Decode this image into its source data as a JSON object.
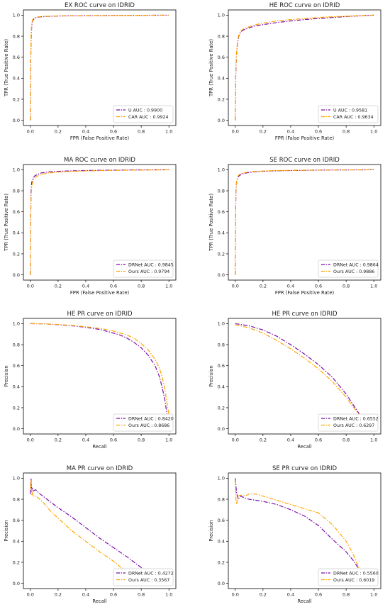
{
  "colors": {
    "u": "#7a0da6",
    "car": "#ffa500"
  },
  "chart_data": [
    {
      "type": "line",
      "title": "EX ROC curve on IDRID",
      "xlabel": "FPR (False Positive Rate)",
      "ylabel": "TPR (True Positive Rate)",
      "xlim": [
        -0.05,
        1.05
      ],
      "ylim": [
        -0.05,
        1.05
      ],
      "xticks": [
        "0.0",
        "0.2",
        "0.4",
        "0.6",
        "0.8",
        "1.0"
      ],
      "yticks": [
        "0.0",
        "0.2",
        "0.4",
        "0.6",
        "0.8",
        "1.0"
      ],
      "legend": "lower-right",
      "series": [
        {
          "name": "U AUC : 0.9900",
          "color": "#7a0da6",
          "x": [
            0,
            0.002,
            0.005,
            0.01,
            0.015,
            0.02,
            0.03,
            0.05,
            0.08,
            0.12,
            0.2,
            0.3,
            0.5,
            0.7,
            1.0
          ],
          "y": [
            0,
            0.45,
            0.75,
            0.9,
            0.94,
            0.955,
            0.97,
            0.98,
            0.985,
            0.988,
            0.992,
            0.994,
            0.996,
            0.998,
            1.0
          ]
        },
        {
          "name": "CAR AUC : 0.9924",
          "color": "#ffa500",
          "x": [
            0,
            0.002,
            0.005,
            0.01,
            0.015,
            0.02,
            0.03,
            0.05,
            0.08,
            0.12,
            0.2,
            0.3,
            0.5,
            0.7,
            1.0
          ],
          "y": [
            0,
            0.5,
            0.8,
            0.92,
            0.95,
            0.965,
            0.975,
            0.983,
            0.988,
            0.99,
            0.993,
            0.995,
            0.997,
            0.998,
            1.0
          ]
        }
      ]
    },
    {
      "type": "line",
      "title": "HE ROC curve on IDRID",
      "xlabel": "FPR (False Positive Rate)",
      "ylabel": "TPR (True Positive Rate)",
      "xlim": [
        -0.05,
        1.05
      ],
      "ylim": [
        -0.05,
        1.05
      ],
      "xticks": [
        "0.0",
        "0.2",
        "0.4",
        "0.6",
        "0.8",
        "1.0"
      ],
      "yticks": [
        "0.0",
        "0.2",
        "0.4",
        "0.6",
        "0.8",
        "1.0"
      ],
      "legend": "lower-right",
      "series": [
        {
          "name": "U AUC : 0.9581",
          "color": "#7a0da6",
          "x": [
            0,
            0.003,
            0.008,
            0.015,
            0.025,
            0.04,
            0.06,
            0.1,
            0.15,
            0.2,
            0.3,
            0.4,
            0.5,
            0.6,
            0.7,
            0.8,
            0.9,
            1.0
          ],
          "y": [
            0,
            0.4,
            0.6,
            0.72,
            0.8,
            0.84,
            0.86,
            0.88,
            0.9,
            0.91,
            0.93,
            0.945,
            0.958,
            0.968,
            0.978,
            0.987,
            0.994,
            1.0
          ]
        },
        {
          "name": "CAR AUC : 0.9634",
          "color": "#ffa500",
          "x": [
            0,
            0.003,
            0.008,
            0.015,
            0.025,
            0.04,
            0.06,
            0.1,
            0.15,
            0.2,
            0.3,
            0.4,
            0.5,
            0.6,
            0.7,
            0.8,
            0.9,
            1.0
          ],
          "y": [
            0,
            0.42,
            0.62,
            0.74,
            0.81,
            0.85,
            0.87,
            0.89,
            0.91,
            0.925,
            0.945,
            0.958,
            0.968,
            0.978,
            0.985,
            0.99,
            0.995,
            1.0
          ]
        }
      ]
    },
    {
      "type": "line",
      "title": "MA ROC curve on IDRID",
      "xlabel": "FPR (False Positive Rate)",
      "ylabel": "TPR (True Positive Rate)",
      "xlim": [
        -0.05,
        1.05
      ],
      "ylim": [
        -0.05,
        1.05
      ],
      "xticks": [
        "0.0",
        "0.2",
        "0.4",
        "0.6",
        "0.8",
        "1.0"
      ],
      "yticks": [
        "0.0",
        "0.2",
        "0.4",
        "0.6",
        "0.8",
        "1.0"
      ],
      "legend": "lower-right",
      "series": [
        {
          "name": "DRNet AUC : 0.9845",
          "color": "#7a0da6",
          "x": [
            0,
            0.002,
            0.005,
            0.01,
            0.02,
            0.03,
            0.05,
            0.08,
            0.12,
            0.2,
            0.3,
            0.5,
            0.7,
            1.0
          ],
          "y": [
            0,
            0.5,
            0.78,
            0.88,
            0.92,
            0.94,
            0.955,
            0.97,
            0.978,
            0.985,
            0.99,
            0.995,
            0.998,
            1.0
          ]
        },
        {
          "name": "Ours AUC : 0.9794",
          "color": "#ffa500",
          "x": [
            0,
            0.002,
            0.005,
            0.01,
            0.02,
            0.03,
            0.05,
            0.08,
            0.12,
            0.2,
            0.3,
            0.5,
            0.7,
            1.0
          ],
          "y": [
            0,
            0.45,
            0.72,
            0.84,
            0.9,
            0.92,
            0.94,
            0.955,
            0.968,
            0.978,
            0.985,
            0.992,
            0.996,
            1.0
          ]
        }
      ]
    },
    {
      "type": "line",
      "title": "SE ROC curve on IDRID",
      "xlabel": "FPR (False Positive Rate)",
      "ylabel": "TPR (True Positive Rate)",
      "xlim": [
        -0.05,
        1.05
      ],
      "ylim": [
        -0.05,
        1.05
      ],
      "xticks": [
        "0.0",
        "0.2",
        "0.4",
        "0.6",
        "0.8",
        "1.0"
      ],
      "yticks": [
        "0.0",
        "0.2",
        "0.4",
        "0.6",
        "0.8",
        "1.0"
      ],
      "legend": "lower-right",
      "series": [
        {
          "name": "DRNet AUC : 0.9864",
          "color": "#7a0da6",
          "x": [
            0,
            0.002,
            0.005,
            0.01,
            0.02,
            0.03,
            0.05,
            0.08,
            0.12,
            0.2,
            0.3,
            0.5,
            0.7,
            1.0
          ],
          "y": [
            0,
            0.55,
            0.8,
            0.89,
            0.93,
            0.945,
            0.96,
            0.97,
            0.978,
            0.986,
            0.99,
            0.995,
            0.998,
            1.0
          ]
        },
        {
          "name": "Ours AUC : 0.9886",
          "color": "#ffa500",
          "x": [
            0,
            0.002,
            0.005,
            0.01,
            0.02,
            0.03,
            0.05,
            0.08,
            0.12,
            0.2,
            0.3,
            0.5,
            0.7,
            1.0
          ],
          "y": [
            0,
            0.6,
            0.82,
            0.9,
            0.94,
            0.955,
            0.968,
            0.976,
            0.982,
            0.988,
            0.992,
            0.996,
            0.998,
            1.0
          ]
        }
      ]
    },
    {
      "type": "line",
      "title": "HE PR curve on IDRID",
      "xlabel": "Recall",
      "ylabel": "Precision",
      "xlim": [
        -0.05,
        1.05
      ],
      "ylim": [
        -0.05,
        1.05
      ],
      "xticks": [
        "0.0",
        "0.2",
        "0.4",
        "0.6",
        "0.8",
        "1.0"
      ],
      "yticks": [
        "0.0",
        "0.2",
        "0.4",
        "0.6",
        "0.8",
        "1.0"
      ],
      "legend": "lower-right",
      "series": [
        {
          "name": "DRNet AUC : 0.8420",
          "color": "#7a0da6",
          "x": [
            0,
            0.1,
            0.2,
            0.3,
            0.4,
            0.5,
            0.6,
            0.65,
            0.7,
            0.75,
            0.8,
            0.85,
            0.9,
            0.93,
            0.95,
            0.97,
            0.99
          ],
          "y": [
            1.0,
            0.998,
            0.99,
            0.98,
            0.965,
            0.945,
            0.91,
            0.89,
            0.86,
            0.82,
            0.77,
            0.7,
            0.6,
            0.5,
            0.4,
            0.28,
            0.1
          ]
        },
        {
          "name": "Ours AUC : 0.8686",
          "color": "#ffa500",
          "x": [
            0,
            0.1,
            0.2,
            0.3,
            0.4,
            0.5,
            0.6,
            0.65,
            0.7,
            0.75,
            0.8,
            0.85,
            0.9,
            0.93,
            0.95,
            0.97,
            1.0
          ],
          "y": [
            1.0,
            0.998,
            0.992,
            0.983,
            0.97,
            0.955,
            0.93,
            0.91,
            0.89,
            0.86,
            0.81,
            0.75,
            0.66,
            0.58,
            0.5,
            0.38,
            0.13
          ]
        }
      ]
    },
    {
      "type": "line",
      "title": "HE PR curve on IDRID",
      "xlabel": "Recall",
      "ylabel": "Precision",
      "xlim": [
        -0.05,
        1.05
      ],
      "ylim": [
        -0.05,
        1.05
      ],
      "xticks": [
        "0.0",
        "0.2",
        "0.4",
        "0.6",
        "0.8",
        "1.0"
      ],
      "yticks": [
        "0.0",
        "0.2",
        "0.4",
        "0.6",
        "0.8",
        "1.0"
      ],
      "legend": "lower-right",
      "series": [
        {
          "name": "DRNet AUC : 0.6552",
          "color": "#7a0da6",
          "x": [
            0,
            0.1,
            0.2,
            0.3,
            0.4,
            0.5,
            0.6,
            0.7,
            0.8,
            0.9
          ],
          "y": [
            1.0,
            0.98,
            0.94,
            0.88,
            0.8,
            0.71,
            0.61,
            0.49,
            0.33,
            0.13
          ]
        },
        {
          "name": "Ours AUC : 0.6297",
          "color": "#ffa500",
          "x": [
            0,
            0.1,
            0.2,
            0.3,
            0.4,
            0.5,
            0.6,
            0.7,
            0.8,
            0.9
          ],
          "y": [
            0.99,
            0.96,
            0.91,
            0.84,
            0.76,
            0.67,
            0.57,
            0.45,
            0.3,
            0.12
          ]
        }
      ]
    },
    {
      "type": "line",
      "title": "MA PR curve on IDRID",
      "xlabel": "Recall",
      "ylabel": "Precision",
      "xlim": [
        -0.05,
        1.05
      ],
      "ylim": [
        -0.05,
        1.05
      ],
      "xticks": [
        "0.0",
        "0.2",
        "0.4",
        "0.6",
        "0.8",
        "1.0"
      ],
      "yticks": [
        "0.0",
        "0.2",
        "0.4",
        "0.6",
        "0.8",
        "1.0"
      ],
      "legend": "lower-right",
      "series": [
        {
          "name": "DRNet AUC : 0.4272",
          "color": "#7a0da6",
          "x": [
            0,
            0.005,
            0.01,
            0.015,
            0.02,
            0.04,
            0.06,
            0.1,
            0.15,
            0.2,
            0.3,
            0.4,
            0.5,
            0.6,
            0.7,
            0.8,
            0.86
          ],
          "y": [
            0.85,
            1.0,
            0.88,
            0.9,
            0.88,
            0.89,
            0.86,
            0.82,
            0.77,
            0.72,
            0.63,
            0.53,
            0.43,
            0.34,
            0.25,
            0.15,
            0.09
          ]
        },
        {
          "name": "Ours AUC : 0.3567",
          "color": "#ffa500",
          "x": [
            0,
            0.005,
            0.01,
            0.015,
            0.02,
            0.04,
            0.06,
            0.1,
            0.15,
            0.2,
            0.3,
            0.4,
            0.5,
            0.6,
            0.7,
            0.76
          ],
          "y": [
            0.9,
            0.98,
            0.84,
            0.86,
            0.83,
            0.83,
            0.81,
            0.76,
            0.68,
            0.62,
            0.5,
            0.4,
            0.3,
            0.21,
            0.1,
            0.04
          ]
        }
      ]
    },
    {
      "type": "line",
      "title": "SE PR curve on IDRID",
      "xlabel": "Recall",
      "ylabel": "Precision",
      "xlim": [
        -0.05,
        1.05
      ],
      "ylim": [
        -0.05,
        1.05
      ],
      "xticks": [
        "0.0",
        "0.2",
        "0.4",
        "0.6",
        "0.8",
        "1.0"
      ],
      "yticks": [
        "0.0",
        "0.2",
        "0.4",
        "0.6",
        "0.8",
        "1.0"
      ],
      "legend": "lower-right",
      "series": [
        {
          "name": "DRNet AUC : 0.5560",
          "color": "#7a0da6",
          "x": [
            0,
            0.005,
            0.01,
            0.02,
            0.04,
            0.07,
            0.1,
            0.15,
            0.2,
            0.3,
            0.4,
            0.5,
            0.6,
            0.7,
            0.8,
            0.85,
            0.9
          ],
          "y": [
            1.0,
            0.92,
            0.86,
            0.8,
            0.83,
            0.81,
            0.8,
            0.79,
            0.78,
            0.75,
            0.7,
            0.64,
            0.55,
            0.42,
            0.3,
            0.22,
            0.12
          ]
        },
        {
          "name": "Ours AUC : 0.6019",
          "color": "#ffa500",
          "x": [
            0,
            0.005,
            0.01,
            0.02,
            0.04,
            0.07,
            0.1,
            0.15,
            0.2,
            0.3,
            0.4,
            0.5,
            0.6,
            0.7,
            0.8,
            0.85,
            0.9
          ],
          "y": [
            0.98,
            0.8,
            0.75,
            0.83,
            0.84,
            0.83,
            0.85,
            0.85,
            0.83,
            0.79,
            0.75,
            0.71,
            0.67,
            0.56,
            0.4,
            0.28,
            0.12
          ]
        }
      ]
    }
  ]
}
